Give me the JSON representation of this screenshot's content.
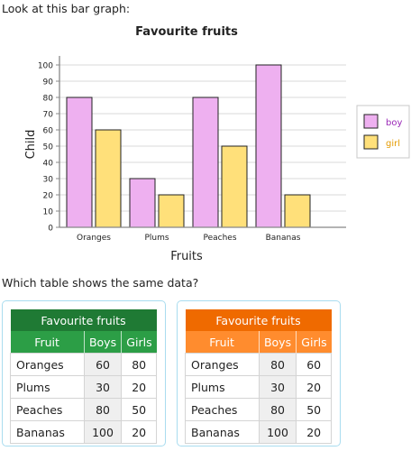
{
  "prompt": "Look at this bar graph:",
  "question": "Which table shows the same data?",
  "colors": {
    "boy": "#eeb0f0",
    "girl": "#ffe07a",
    "boy_legend_text": "#9b2ab8",
    "girl_legend_text": "#e59b00",
    "green_dark": "#1f7a34",
    "green_light": "#2c9e46",
    "orange_dark": "#ef6a00",
    "orange_light": "#ff8c2e"
  },
  "chart_data": {
    "type": "bar",
    "title": "Favourite fruits",
    "xlabel": "Fruits",
    "ylabel": "Child",
    "categories": [
      "Oranges",
      "Plums",
      "Peaches",
      "Bananas"
    ],
    "series": [
      {
        "name": "boy",
        "values": [
          80,
          30,
          80,
          100
        ]
      },
      {
        "name": "girl",
        "values": [
          60,
          20,
          50,
          20
        ]
      }
    ],
    "ylim": [
      0,
      100
    ],
    "yticks": [
      0,
      10,
      20,
      30,
      40,
      50,
      60,
      70,
      80,
      90,
      100
    ],
    "grid": true,
    "legend": "right"
  },
  "tables": [
    {
      "caption": "Favourite fruits",
      "headers": [
        "Fruit",
        "Boys",
        "Girls"
      ],
      "rows": [
        [
          "Oranges",
          "60",
          "80"
        ],
        [
          "Plums",
          "30",
          "20"
        ],
        [
          "Peaches",
          "80",
          "50"
        ],
        [
          "Bananas",
          "100",
          "20"
        ]
      ]
    },
    {
      "caption": "Favourite fruits",
      "headers": [
        "Fruit",
        "Boys",
        "Girls"
      ],
      "rows": [
        [
          "Oranges",
          "80",
          "60"
        ],
        [
          "Plums",
          "30",
          "20"
        ],
        [
          "Peaches",
          "80",
          "50"
        ],
        [
          "Bananas",
          "100",
          "20"
        ]
      ]
    }
  ]
}
